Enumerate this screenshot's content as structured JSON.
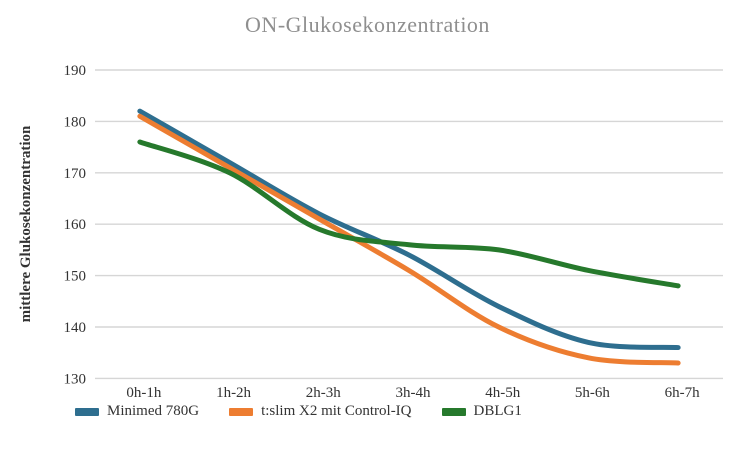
{
  "colors": {
    "title_text": "#8f8f8f",
    "axis_text": "#333333",
    "gridline": "#d6d6d6",
    "background": "#ffffff"
  },
  "chart_data": {
    "type": "line",
    "title": "ON-Glukosekonzentration",
    "xlabel": "",
    "ylabel": "mittlere Glukosekonzentration",
    "categories": [
      "0h-1h",
      "1h-2h",
      "2h-3h",
      "3h-4h",
      "4h-5h",
      "5h-6h",
      "6h-7h"
    ],
    "series": [
      {
        "name": "Minimed 780G",
        "color": "#2e6e8f",
        "values": [
          182,
          172,
          162,
          154,
          144,
          137,
          136
        ]
      },
      {
        "name": "t:slim X2 mit Control-IQ",
        "color": "#ed7d31",
        "values": [
          181,
          171,
          161,
          151,
          140,
          134,
          133
        ]
      },
      {
        "name": "DBLG1",
        "color": "#26792c",
        "values": [
          176,
          170,
          159,
          156,
          155,
          151,
          148
        ]
      }
    ],
    "ylim": [
      130,
      190
    ],
    "yticks": [
      130,
      140,
      150,
      160,
      170,
      180,
      190
    ],
    "grid": true,
    "smooth_lines": true,
    "legend_position": "bottom-left"
  }
}
